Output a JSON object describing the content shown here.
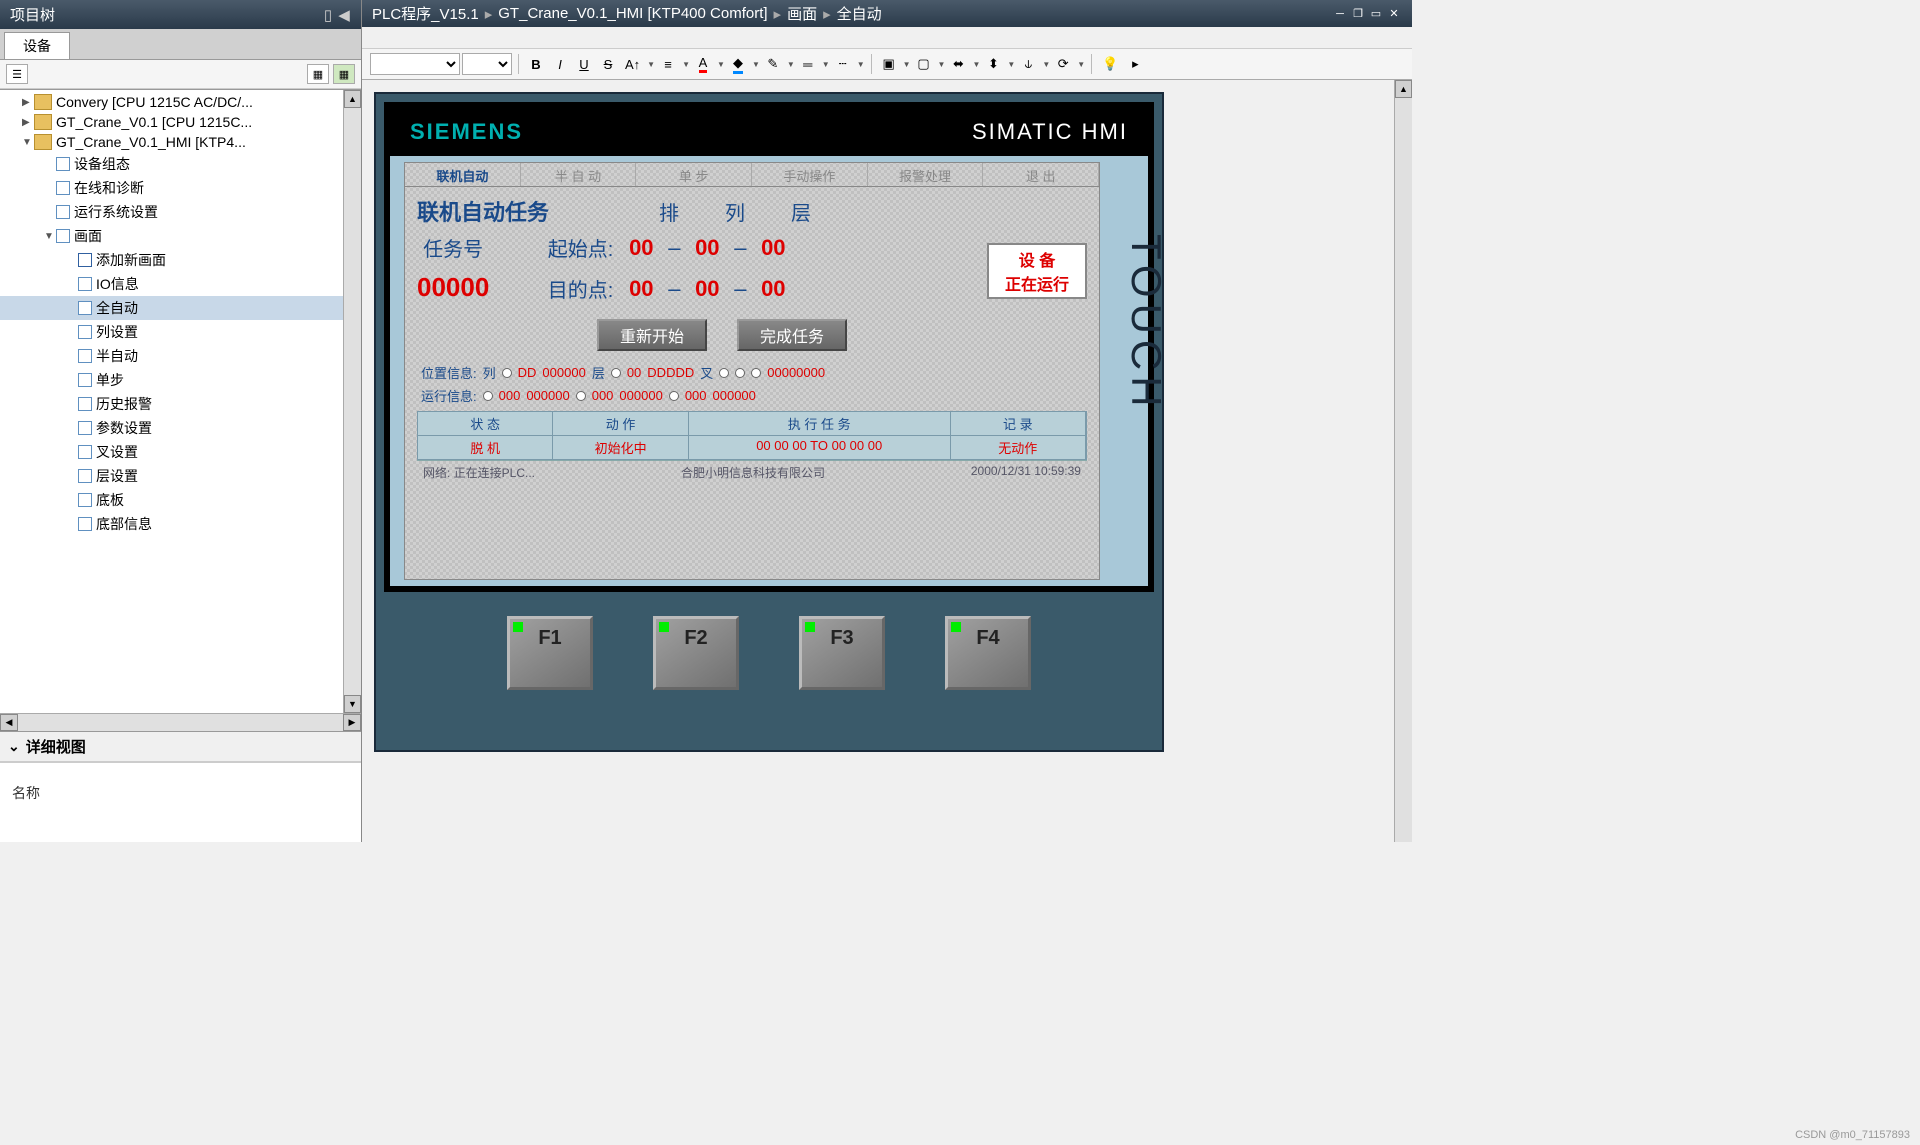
{
  "leftPanel": {
    "title": "项目树",
    "tab": "设备",
    "tree": [
      {
        "indent": 1,
        "arrow": "▶",
        "icon": "folder",
        "label": "Convery [CPU 1215C AC/DC/..."
      },
      {
        "indent": 1,
        "arrow": "▶",
        "icon": "folder",
        "label": "GT_Crane_V0.1 [CPU 1215C..."
      },
      {
        "indent": 1,
        "arrow": "▼",
        "icon": "folder",
        "label": "GT_Crane_V0.1_HMI [KTP4..."
      },
      {
        "indent": 2,
        "arrow": "",
        "icon": "device",
        "label": "设备组态"
      },
      {
        "indent": 2,
        "arrow": "",
        "icon": "diag",
        "label": "在线和诊断"
      },
      {
        "indent": 2,
        "arrow": "",
        "icon": "runtime",
        "label": "运行系统设置"
      },
      {
        "indent": 2,
        "arrow": "▼",
        "icon": "pages",
        "label": "画面"
      },
      {
        "indent": 3,
        "arrow": "",
        "icon": "addpage",
        "label": "添加新画面"
      },
      {
        "indent": 3,
        "arrow": "",
        "icon": "page",
        "label": "IO信息"
      },
      {
        "indent": 3,
        "arrow": "",
        "icon": "page",
        "label": "全自动",
        "selected": true
      },
      {
        "indent": 3,
        "arrow": "",
        "icon": "page",
        "label": "列设置"
      },
      {
        "indent": 3,
        "arrow": "",
        "icon": "page",
        "label": "半自动"
      },
      {
        "indent": 3,
        "arrow": "",
        "icon": "page",
        "label": "单步"
      },
      {
        "indent": 3,
        "arrow": "",
        "icon": "page",
        "label": "历史报警"
      },
      {
        "indent": 3,
        "arrow": "",
        "icon": "page",
        "label": "参数设置"
      },
      {
        "indent": 3,
        "arrow": "",
        "icon": "page",
        "label": "叉设置"
      },
      {
        "indent": 3,
        "arrow": "",
        "icon": "page",
        "label": "层设置"
      },
      {
        "indent": 3,
        "arrow": "",
        "icon": "page",
        "label": "底板"
      },
      {
        "indent": 3,
        "arrow": "",
        "icon": "page",
        "label": "底部信息"
      }
    ],
    "detailTitle": "详细视图",
    "detailLabel": "名称"
  },
  "rightPanel": {
    "breadcrumb": [
      "PLC程序_V15.1",
      "GT_Crane_V0.1_HMI [KTP400 Comfort]",
      "画面",
      "全自动"
    ],
    "toolbar": {
      "bold": "B",
      "italic": "I",
      "underline": "U",
      "strike": "S"
    }
  },
  "hmi": {
    "brand": "SIEMENS",
    "product": "SIMATIC HMI",
    "touch": "TOUCH",
    "navTabs": [
      "联机自动",
      "半 自 动",
      "单    步",
      "手动操作",
      "报警处理",
      "退    出"
    ],
    "autoTaskLabel": "联机自动任务",
    "colHeaders": [
      "排",
      "列",
      "层"
    ],
    "taskLabel": "任务号",
    "taskNum": "00000",
    "startLabel": "起始点:",
    "destLabel": "目的点:",
    "startVals": [
      "00",
      "00",
      "00"
    ],
    "destVals": [
      "00",
      "00",
      "00"
    ],
    "statusBox": [
      "设 备",
      "正在运行"
    ],
    "btnRestart": "重新开始",
    "btnComplete": "完成任务",
    "posInfoLabel": "位置信息:",
    "posInfo": {
      "colLabel": "列",
      "colVal": "DD",
      "colVal2": "000000",
      "layerLabel": "层",
      "layerVal": "00",
      "layerVal2": "DDDDD",
      "forkLabel": "叉",
      "forkVal": "00000000"
    },
    "runInfoLabel": "运行信息:",
    "runInfo": [
      "000",
      "000000",
      "000",
      "000000",
      "000",
      "000000"
    ],
    "tableHead": [
      "状    态",
      "动    作",
      "执  行  任  务",
      "记    录"
    ],
    "tableBody": {
      "status": "脱    机",
      "action": "初始化中",
      "task": "00  00  00 TO 00  00  00",
      "record": "无动作"
    },
    "footerNet": "网络: 正在连接PLC...",
    "footerCompany": "合肥小明信息科技有限公司",
    "footerTime": "2000/12/31 10:59:39",
    "fkeys": [
      "F1",
      "F2",
      "F3",
      "F4"
    ]
  },
  "watermark": "CSDN @m0_71157893"
}
